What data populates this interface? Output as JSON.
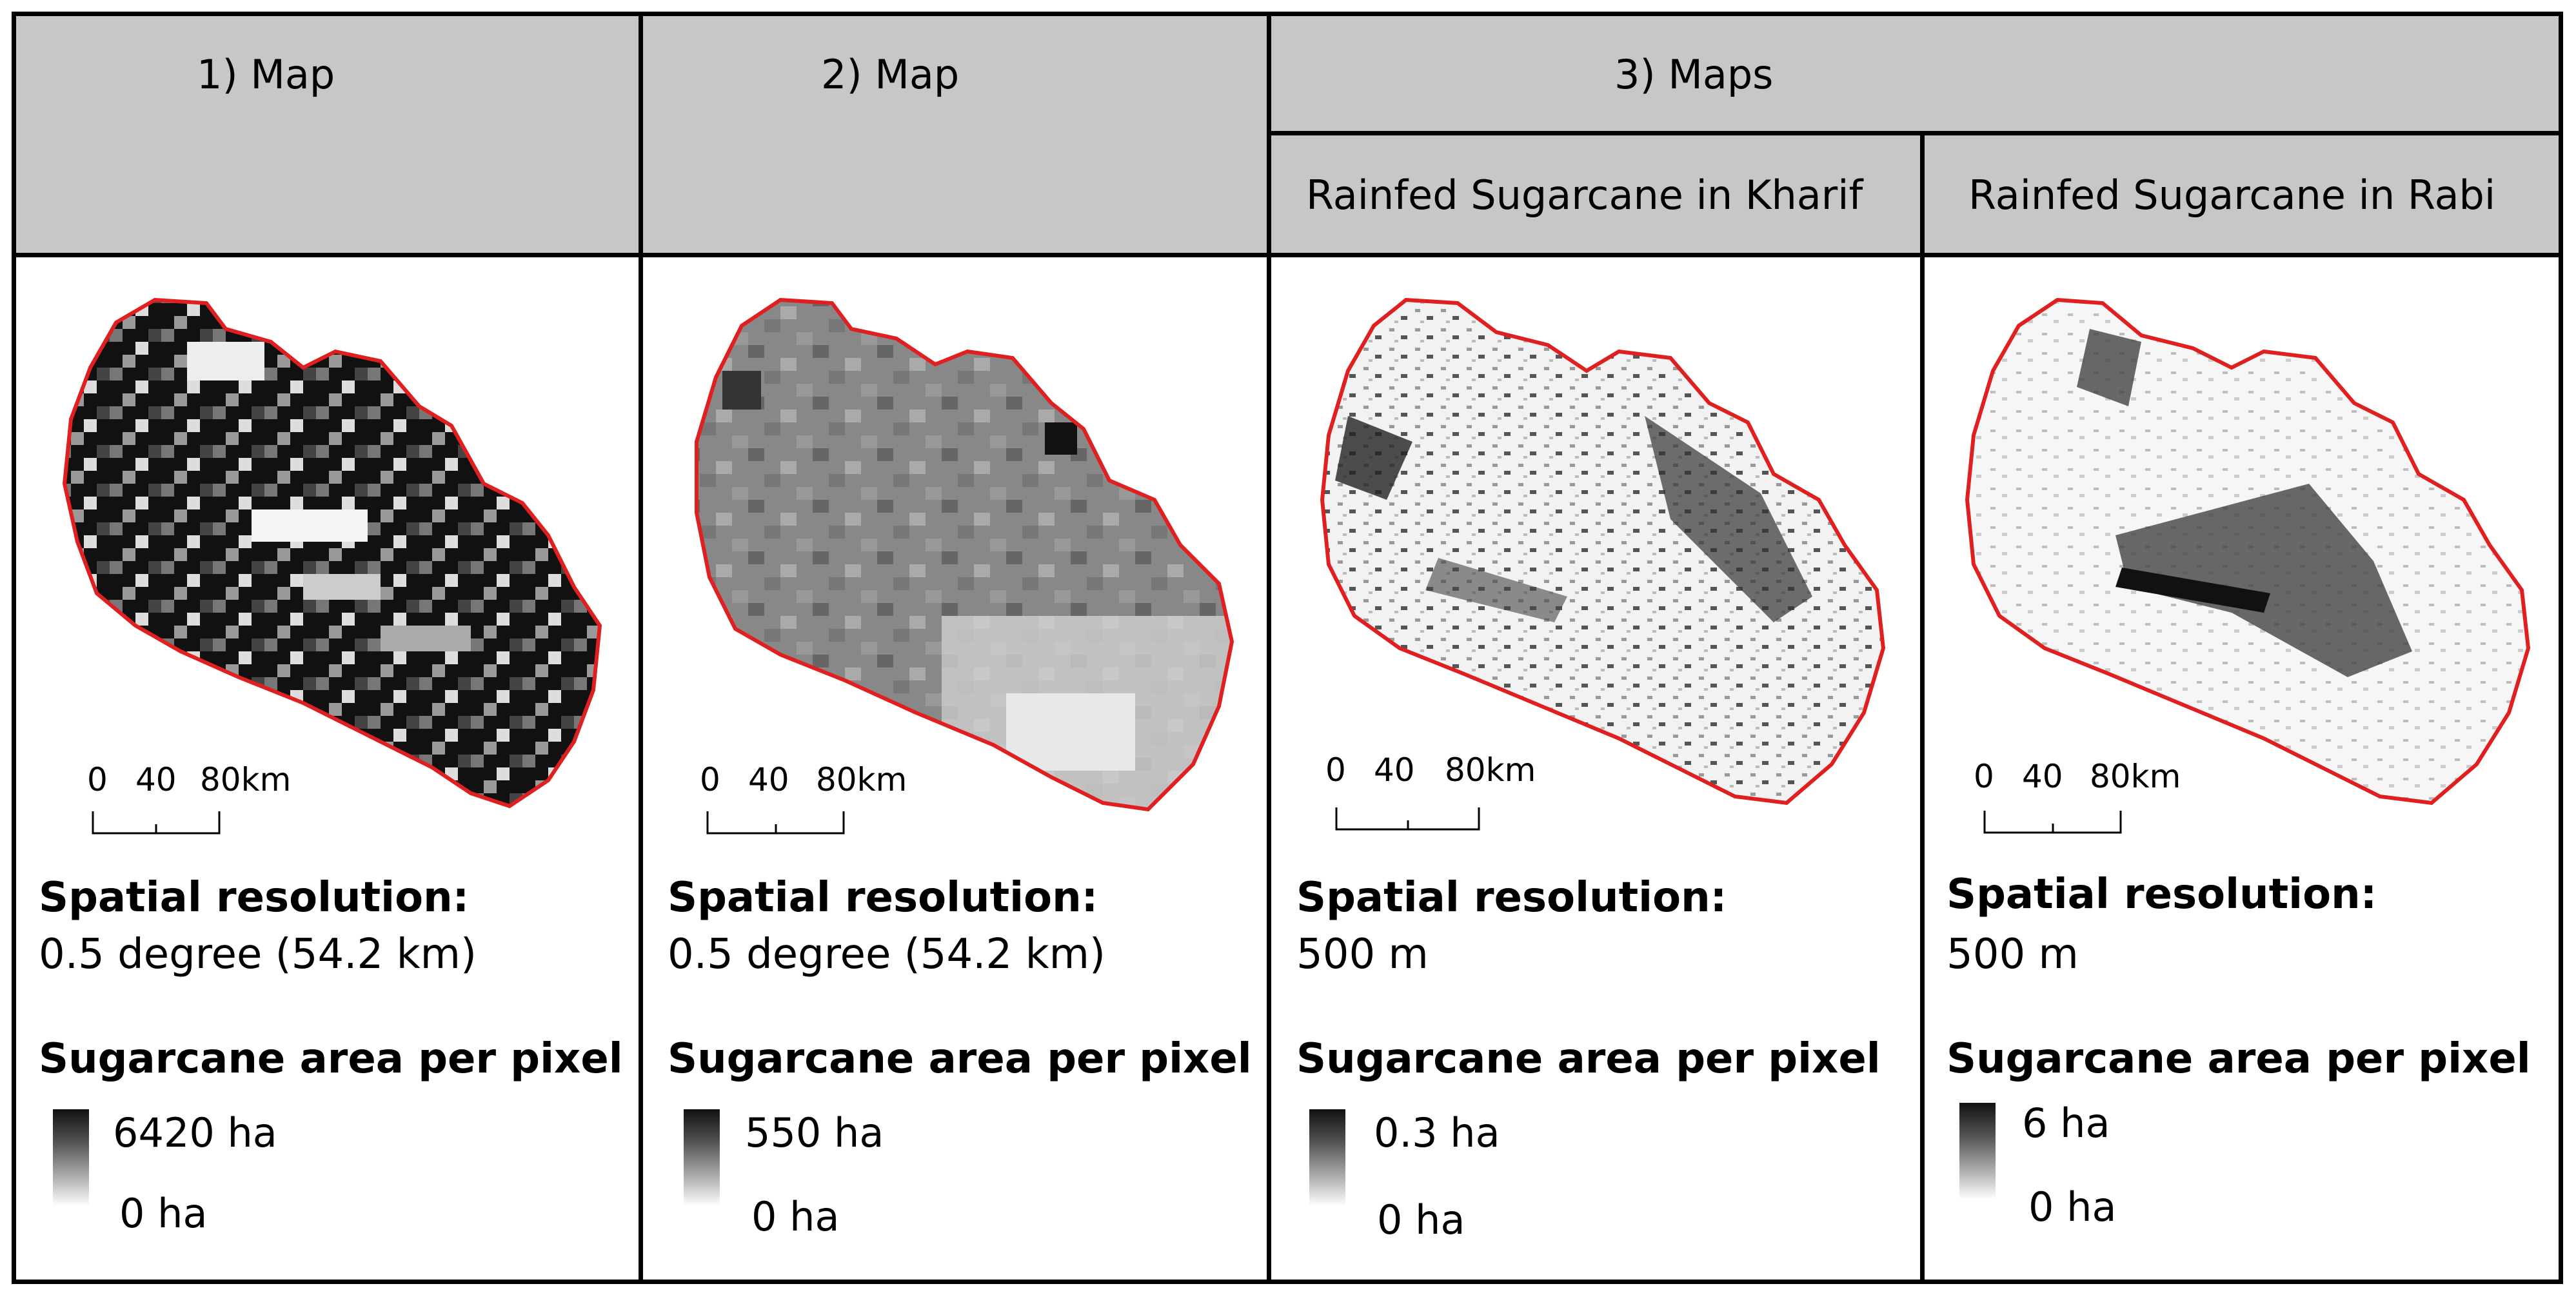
{
  "headers": {
    "col1": "1) Map",
    "col2": "2) Map",
    "col3": "3) Maps",
    "sub_kharif": "Rainfed Sugarcane in Kharif",
    "sub_rabi": "Rainfed Sugarcane in Rabi"
  },
  "panels": [
    {
      "scale_labels": [
        "0",
        "40",
        "80km"
      ],
      "resolution_title": "Spatial resolution:",
      "resolution_value": "0.5 degree (54.2 km)",
      "area_title": "Sugarcane area per pixel",
      "legend_max": "6420 ha",
      "legend_min": "0 ha"
    },
    {
      "scale_labels": [
        "0",
        "40",
        "80km"
      ],
      "resolution_title": "Spatial resolution:",
      "resolution_value": "0.5 degree (54.2 km)",
      "area_title": "Sugarcane area per pixel",
      "legend_max": "550 ha",
      "legend_min": "0 ha"
    },
    {
      "scale_labels": [
        "0",
        "40",
        "80km"
      ],
      "resolution_title": "Spatial resolution:",
      "resolution_value": "500 m",
      "area_title": "Sugarcane area per pixel",
      "legend_max": "0.3 ha",
      "legend_min": "0 ha"
    },
    {
      "scale_labels": [
        "0",
        "40",
        "80km"
      ],
      "resolution_title": "Spatial resolution:",
      "resolution_value": "500 m",
      "area_title": "Sugarcane area per pixel",
      "legend_max": "6 ha",
      "legend_min": "0 ha"
    }
  ],
  "colors": {
    "boundary": "#e02020",
    "header_bg": "#c7c7c7",
    "grid": "#000000"
  }
}
